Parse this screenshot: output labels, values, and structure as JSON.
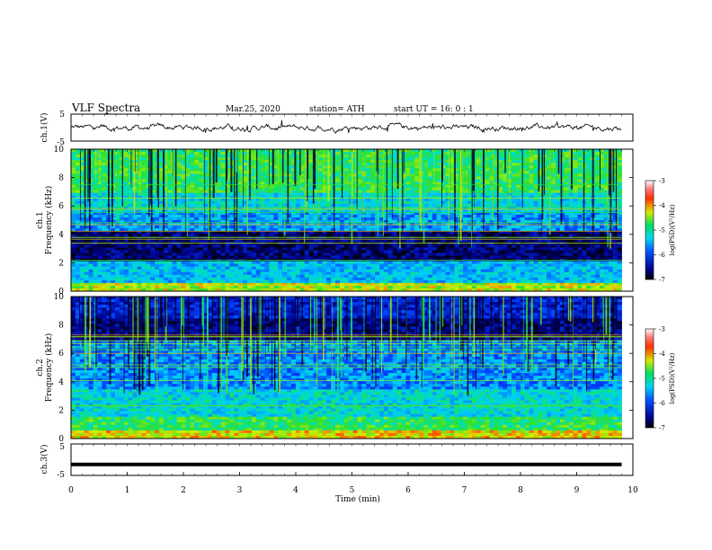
{
  "header": {
    "title": "VLF  Spectra",
    "date": "Mar.25, 2020",
    "station": "station= ATH",
    "start": "start  UT  =    16: 0   : 1"
  },
  "chart_data": [
    {
      "type": "line",
      "id": "ch1-waveform",
      "ylabel": "ch.1(V)",
      "ylim": [
        -5,
        5
      ],
      "yticks": [
        "5",
        "-5"
      ],
      "xlim": [
        0,
        10
      ],
      "description_level": 0.1,
      "x_end": 9.8
    },
    {
      "type": "heatmap",
      "id": "ch1-spectrogram",
      "ylabel_lines": [
        "ch.1",
        "Frequency  (kHz)"
      ],
      "ylim": [
        0,
        10
      ],
      "yticks": [
        "0",
        "2",
        "4",
        "6",
        "8",
        "10"
      ],
      "xlim": [
        0,
        10
      ],
      "x_end": 9.8,
      "colorbar": {
        "label": "log(PSD)(V²/Hz)",
        "range": [
          -7,
          -3
        ],
        "ticks": [
          "-3",
          "-4",
          "-5",
          "-6",
          "-7"
        ]
      }
    },
    {
      "type": "heatmap",
      "id": "ch2-spectrogram",
      "ylabel_lines": [
        "ch.2",
        "Frequency  (kHz)"
      ],
      "ylim": [
        0,
        10
      ],
      "yticks": [
        "0",
        "2",
        "4",
        "6",
        "8",
        "10"
      ],
      "xlim": [
        0,
        10
      ],
      "x_end": 9.8,
      "colorbar": {
        "label": "log(PSD)(V²/Hz)",
        "range": [
          -7,
          -3
        ],
        "ticks": [
          "-3",
          "-4",
          "-5",
          "-6",
          "-7"
        ]
      }
    },
    {
      "type": "line",
      "id": "ch3-waveform",
      "ylabel": "ch.3(V)",
      "ylim": [
        -5,
        5
      ],
      "yticks": [
        "5",
        "-5"
      ],
      "xlim": [
        0,
        10
      ],
      "level": -1.5,
      "x_end": 9.8,
      "xlabel": "Time  (min)",
      "xticks": [
        "0",
        "1",
        "2",
        "3",
        "4",
        "5",
        "6",
        "7",
        "8",
        "9",
        "10"
      ]
    }
  ]
}
